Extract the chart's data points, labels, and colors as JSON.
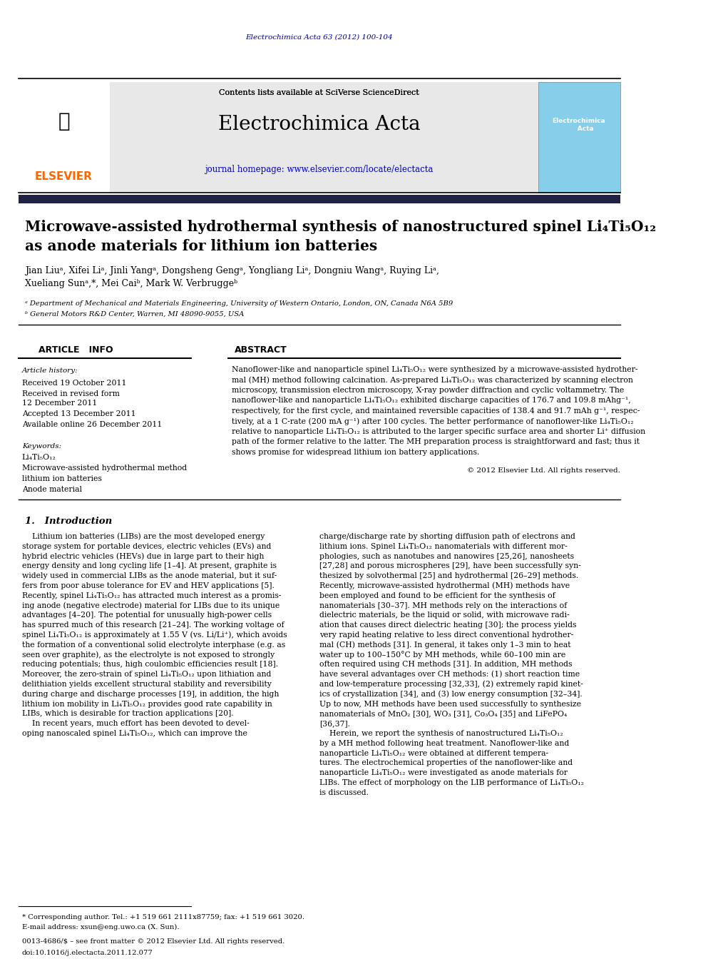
{
  "journal_name": "Electrochimica Acta",
  "journal_ref": "Electrochimica Acta 63 (2012) 100-104",
  "journal_url": "www.elsevier.com/locate/electacta",
  "sciverse_text": "Contents lists available at SciVerse ScienceDirect",
  "title_line1": "Microwave-assisted hydrothermal synthesis of nanostructured spinel Li₄Ti₅O₁₂",
  "title_line2": "as anode materials for lithium ion batteries",
  "authors": "Jian Liuᵃ, Xifei Liᵃ, Jinli Yangᵃ, Dongsheng Gengᵃ, Yongliang Liᵃ, Dongniu Wangᵃ, Ruying Liᵃ,\nXueliang Sunᵃ,*, Mei Caiᵇ, Mark W. Verbruggeᵇ",
  "affil_a": "ᵃ Department of Mechanical and Materials Engineering, University of Western Ontario, London, ON, Canada N6A 5B9",
  "affil_b": "ᵇ General Motors R&D Center, Warren, MI 48090-9055, USA",
  "article_info_title": "ARTICLE   INFO",
  "abstract_title": "ABSTRACT",
  "article_history_label": "Article history:",
  "received": "Received 19 October 2011",
  "revised": "Received in revised form\n12 December 2011",
  "accepted": "Accepted 13 December 2011",
  "available": "Available online 26 December 2011",
  "keywords_label": "Keywords:",
  "keyword1": "Li₄Ti₅O₁₂",
  "keyword2": "Microwave-assisted hydrothermal method",
  "keyword3": "lithium ion batteries",
  "keyword4": "Anode material",
  "abstract_text": "Nanoflower-like and nanoparticle spinel Li₄Ti₅O₁₂ were synthesized by a microwave-assisted hydrothermal (MH) method following calcination. As-prepared Li₄Ti₅O₁₂ was characterized by scanning electron microscopy, transmission electron microscopy, X-ray powder diffraction and cyclic voltammetry. The nanoflower-like and nanoparticle Li₄Ti₅O₁₂ exhibited discharge capacities of 176.7 and 109.8 mAhg⁻¹, respectively, for the first cycle, and maintained reversible capacities of 138.4 and 91.7 mAh g⁻¹, respectively, at a 1 C-rate (200 mA g⁻¹) after 100 cycles. The better performance of nanoflower-like Li₄Ti₅O₁₂ relative to nanoparticle Li₄Ti₅O₁₂ is attributed to the larger specific surface area and shorter Li⁺ diffusion path of the former relative to the latter. The MH preparation process is straightforward and fast; thus it shows promise for widespread lithium ion battery applications.",
  "copyright": "© 2012 Elsevier Ltd. All rights reserved.",
  "intro_title": "1.   Introduction",
  "intro_text_left": "Lithium ion batteries (LIBs) are the most developed energy storage system for portable devices, electric vehicles (EVs) and hybrid electric vehicles (HEVs) due in large part to their high energy density and long cycling life [1–4]. At present, graphite is widely used in commercial LIBs as the anode material, but it suffers from poor abuse tolerance for EV and HEV applications [5]. Recently, spinel Li₄Ti₅O₁₂ has attracted much interest as a promising anode (negative electrode) material for LIBs due to its unique advantages [4–20]. The potential for unusually high-power cells has spurred much of this research [21–24]. The working voltage of spinel Li₄Ti₅O₁₂ is approximately at 1.55 V (vs. Li/Li⁺), which avoids the formation of a conventional solid electrolyte interphase (e.g. as seen over graphite), as the electrolyte is not exposed to strongly reducing potentials; thus, high coulombic efficiencies result [18]. Moreover, the zero-strain of spinel Li₄Ti₅O₁₂ upon lithiation and delithiation yields excellent structural stability and reversibility during charge and discharge processes [19], in addition, the high lithium ion mobility in Li₄Ti₅O₁₂ provides good rate capability in LIBs, which is desirable for traction applications [20].\n    In recent years, much effort has been devoted to developing nanoscaled spinel Li₄Ti₅O₁₂, which can improve the",
  "intro_text_right": "charge/discharge rate by shorting diffusion path of electrons and lithium ions. Spinel Li₄Ti₅O₁₂ nanomaterials with different morphologies, such as nanotubes and nanowires [25,26], nanosheets [27,28] and porous microspheres [29], have been successfully synthesized by solvothermal [25] and hydrothermal [26–29] methods. Recently, microwave-assisted hydrothermal (MH) methods have been employed and found to be efficient for the synthesis of nanomaterials [30–37]. MH methods rely on the interactions of dielectric materials, be the liquid or solid, with microwave radiation that causes direct dielectric heating [30]; the process yields very rapid heating relative to less direct conventional hydrothermal (CH) methods [31]. In general, it takes only 1–3 min to heat water up to 100–150°C by MH methods, while 60–100 min are often required using CH methods [31]. In addition, MH methods have several advantages over CH methods: (1) short reaction time and low-temperature processing [32,33], (2) extremely rapid kinetics of crystallization [34], and (3) low energy consumption [32–34]. Up to now, MH methods have been used successfully to synthesize nanomaterials of MnO₂ [30], WO₃ [31], Co₃O₄ [35] and LiFePO₄ [36,37].\n    Herein, we report the synthesis of nanostructured Li₄Ti₅O₁₂ by a MH method following heat treatment. Nanoflower-like and nanoparticle Li₄Ti₅O₁₂ were obtained at different temperatures. The electrochemical properties of the nanoflower-like and nanoparticle Li₄Ti₅O₁₂ were investigated as anode materials for LIBs. The effect of morphology on the LIB performance of Li₄Ti₅O₁₂ is discussed.",
  "footnote1": "* Corresponding author. Tel.: +1 519 661 2111x87759; fax: +1 519 661 3020.",
  "footnote2": "E-mail address: xsun@eng.uwo.ca (X. Sun).",
  "issn": "0013-4686/$ – see front matter © 2012 Elsevier Ltd. All rights reserved.",
  "doi": "doi:10.1016/j.electacta.2011.12.077",
  "elsevier_color": "#FF6600",
  "header_bg": "#e8e8e8",
  "dark_bar_color": "#1a1a2e",
  "journal_title_color": "#000000",
  "link_color": "#0000CC",
  "dark_blue": "#00008B",
  "intro_section_color": "#1a1a6e"
}
